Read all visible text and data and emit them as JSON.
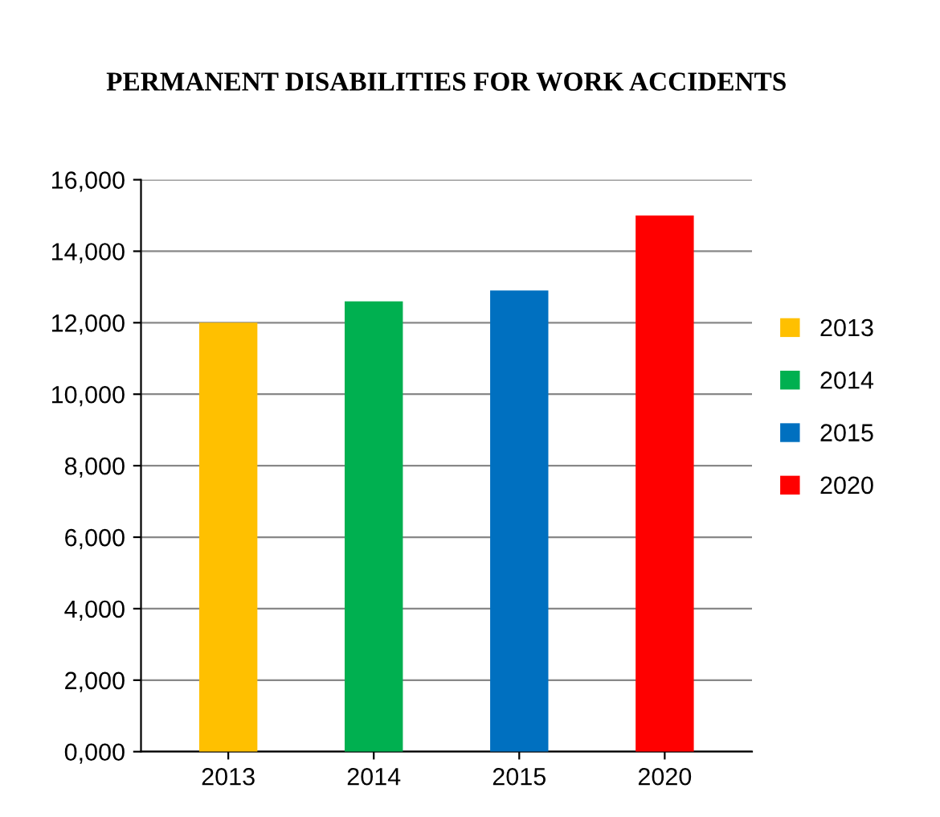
{
  "chart_data": {
    "type": "bar",
    "title": "PERMANENT DISABILITIES FOR WORK ACCIDENTS",
    "categories": [
      "2013",
      "2014",
      "2015",
      "2020"
    ],
    "series": [
      {
        "name": "2013",
        "color": "#ffc000",
        "values": [
          12000,
          null,
          null,
          null
        ]
      },
      {
        "name": "2014",
        "color": "#00b050",
        "values": [
          null,
          12600,
          null,
          null
        ]
      },
      {
        "name": "2015",
        "color": "#0070c0",
        "values": [
          null,
          null,
          12900,
          null
        ]
      },
      {
        "name": "2020",
        "color": "#ff0000",
        "values": [
          null,
          null,
          null,
          15000
        ]
      }
    ],
    "ylim": [
      0,
      16000
    ],
    "yticks": [
      {
        "value": 0,
        "label": "0,000"
      },
      {
        "value": 2000,
        "label": "2,000"
      },
      {
        "value": 4000,
        "label": "4,000"
      },
      {
        "value": 6000,
        "label": "6,000"
      },
      {
        "value": 8000,
        "label": "8,000"
      },
      {
        "value": 10000,
        "label": "10,000"
      },
      {
        "value": 12000,
        "label": "12,000"
      },
      {
        "value": 14000,
        "label": "14,000"
      },
      {
        "value": 16000,
        "label": "16,000"
      }
    ],
    "grid": "y",
    "legend": "right"
  }
}
